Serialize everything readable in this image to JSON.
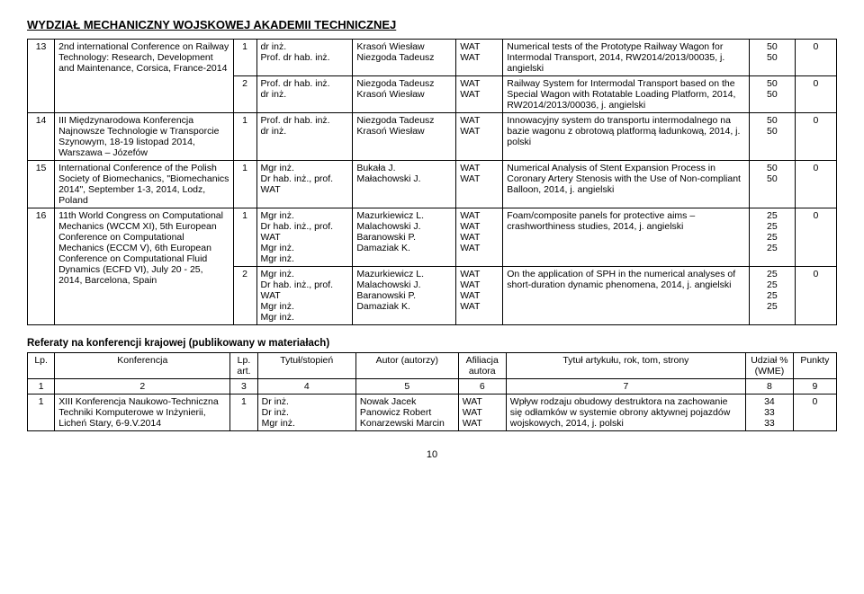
{
  "page_title": "WYDZIAŁ MECHANICZNY WOJSKOWEJ AKADEMII TECHNICZNEJ",
  "table1": {
    "rows": [
      {
        "num": "13",
        "conf": "2nd international Conference on Railway Technology: Research, Development and Maintenance, Corsica, France-2014",
        "subrows": [
          {
            "lp": "1",
            "degrees": "dr inż.\nProf. dr hab. inż.",
            "authors": "Krasoń Wiesław\nNiezgoda Tadeusz",
            "affil": "WAT\nWAT",
            "article": "Numerical tests of the Prototype Railway Wagon for Intermodal Transport, 2014, RW2014/2013/00035, j. angielski",
            "share": "50\n50",
            "points": "0"
          },
          {
            "lp": "2",
            "degrees": "Prof. dr hab. inż.\ndr inż.",
            "authors": "Niezgoda Tadeusz\nKrasoń Wiesław",
            "affil": "WAT\nWAT",
            "article": "Railway System for Intermodal Transport based on the Special Wagon with Rotatable Loading Platform, 2014, RW2014/2013/00036, j. angielski",
            "share": "50\n50",
            "points": "0"
          }
        ]
      },
      {
        "num": "14",
        "conf": "III Międzynarodowa Konferencja Najnowsze Technologie w Transporcie Szynowym, 18-19 listopad 2014, Warszawa – Józefów",
        "subrows": [
          {
            "lp": "1",
            "degrees": "Prof. dr hab. inż.\ndr inż.",
            "authors": "Niezgoda Tadeusz\nKrasoń Wiesław",
            "affil": "WAT\nWAT",
            "article": "Innowacyjny system do transportu intermodalnego na bazie wagonu z obrotową platformą ładunkową, 2014, j. polski",
            "share": "50\n50",
            "points": "0"
          }
        ]
      },
      {
        "num": "15",
        "conf": "International Conference of the Polish Society of Biomechanics, \"Biomechanics 2014\", September 1-3, 2014, Lodz, Poland",
        "subrows": [
          {
            "lp": "1",
            "degrees": "Mgr inż.\nDr hab. inż., prof. WAT",
            "authors": "Bukała J.\nMałachowski J.",
            "affil": "WAT\nWAT",
            "article": "Numerical Analysis of Stent Expansion Process in Coronary Artery Stenosis with the Use of Non-compliant Balloon, 2014, j. angielski",
            "share": "50\n50",
            "points": "0"
          }
        ]
      },
      {
        "num": "16",
        "conf": "11th World Congress on Computational Mechanics (WCCM XI), 5th European Conference on Computational Mechanics (ECCM V), 6th European Conference on Computational Fluid Dynamics (ECFD VI), July 20 - 25, 2014, Barcelona, Spain",
        "subrows": [
          {
            "lp": "1",
            "degrees": "Mgr inż.\nDr hab. inż., prof. WAT\nMgr inż.\nMgr inż.",
            "authors": "Mazurkiewicz L.\nMalachowski J.\nBaranowski P.\nDamaziak K.",
            "affil": "WAT\nWAT\nWAT\nWAT",
            "article": "Foam/composite panels for protective aims – crashworthiness studies, 2014, j. angielski",
            "share": "25\n25\n25\n25",
            "points": "0"
          },
          {
            "lp": "2",
            "degrees": "Mgr inż.\nDr hab. inż., prof. WAT\nMgr inż.\nMgr inż.",
            "authors": "Mazurkiewicz L.\nMalachowski J.\nBaranowski P.\nDamaziak K.",
            "affil": "WAT\nWAT\nWAT\nWAT",
            "article": "On the application of SPH in the numerical analyses of short-duration dynamic phenomena, 2014, j. angielski",
            "share": "25\n25\n25\n25",
            "points": "0"
          }
        ]
      }
    ]
  },
  "section2_title": "Referaty na konferencji krajowej (publikowany w materiałach)",
  "table2": {
    "headers": {
      "h1": "Lp.",
      "h2": "Konferencja",
      "h3": "Lp. art.",
      "h4": "Tytuł/stopień",
      "h5": "Autor (autorzy)",
      "h6": "Afiliacja autora",
      "h7": "Tytuł artykułu, rok, tom, strony",
      "h8": "Udział % (WME)",
      "h9": "Punkty"
    },
    "numrow": {
      "c1": "1",
      "c2": "2",
      "c3": "3",
      "c4": "4",
      "c5": "5",
      "c6": "6",
      "c7": "7",
      "c8": "8",
      "c9": "9"
    },
    "rows": [
      {
        "num": "1",
        "conf": "XIII Konferencja Naukowo-Techniczna Techniki Komputerowe w Inżynierii, Licheń Stary, 6-9.V.2014",
        "lp": "1",
        "degrees": "Dr inż.\nDr inż.\nMgr inż.",
        "authors": "Nowak Jacek\nPanowicz Robert\nKonarzewski Marcin",
        "affil": "WAT\nWAT\nWAT",
        "article": "Wpływ rodzaju obudowy destruktora na zachowanie się odłamków w systemie obrony aktywnej pojazdów wojskowych, 2014, j. polski",
        "share": "34\n33\n33",
        "points": "0"
      }
    ]
  },
  "page_number": "10"
}
